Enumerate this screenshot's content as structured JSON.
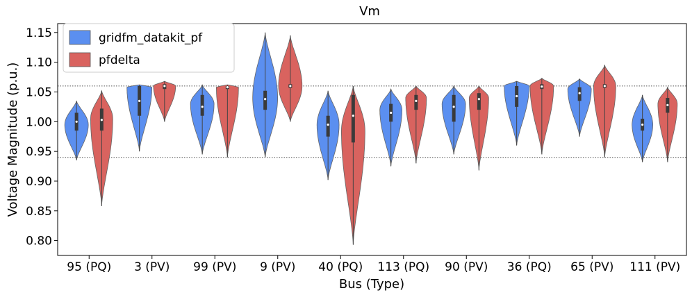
{
  "chart_data": {
    "type": "violin",
    "title": "Vm",
    "xlabel": "Bus (Type)",
    "ylabel": "Voltage Magnitude (p.u.)",
    "ylim": [
      0.775,
      1.165
    ],
    "yticks": [
      0.8,
      0.85,
      0.9,
      0.95,
      1.0,
      1.05,
      1.1,
      1.15
    ],
    "ytick_labels": [
      "0.80",
      "0.85",
      "0.90",
      "0.95",
      "1.00",
      "1.05",
      "1.10",
      "1.15"
    ],
    "categories": [
      "95 (PQ)",
      "3 (PV)",
      "99 (PV)",
      "9 (PV)",
      "40 (PQ)",
      "113 (PQ)",
      "90 (PV)",
      "36 (PQ)",
      "65 (PV)",
      "111 (PV)"
    ],
    "reference_lines": [
      0.94,
      1.06
    ],
    "legend_position": "top-left",
    "series": [
      {
        "name": "gridfm_datakit_pf",
        "color": "#5b8ff0",
        "violins": [
          {
            "min": 0.935,
            "max": 1.035,
            "q1": 0.985,
            "median": 1.0,
            "q3": 1.015,
            "peak": 0.995,
            "width": 0.85
          },
          {
            "min": 0.95,
            "max": 1.062,
            "q1": 1.01,
            "median": 1.035,
            "q3": 1.06,
            "peak": 1.058,
            "width": 0.9
          },
          {
            "min": 0.945,
            "max": 1.062,
            "q1": 1.01,
            "median": 1.025,
            "q3": 1.045,
            "peak": 1.03,
            "width": 0.85
          },
          {
            "min": 0.94,
            "max": 1.15,
            "q1": 1.02,
            "median": 1.038,
            "q3": 1.052,
            "peak": 1.04,
            "width": 0.9
          },
          {
            "min": 0.902,
            "max": 1.052,
            "q1": 0.975,
            "median": 0.995,
            "q3": 1.01,
            "peak": 0.995,
            "width": 0.8
          },
          {
            "min": 0.925,
            "max": 1.055,
            "q1": 1.0,
            "median": 1.015,
            "q3": 1.03,
            "peak": 1.02,
            "width": 0.8
          },
          {
            "min": 0.945,
            "max": 1.06,
            "q1": 1.0,
            "median": 1.025,
            "q3": 1.045,
            "peak": 1.03,
            "width": 0.85
          },
          {
            "min": 0.96,
            "max": 1.068,
            "q1": 1.025,
            "median": 1.043,
            "q3": 1.06,
            "peak": 1.06,
            "width": 0.9
          },
          {
            "min": 0.975,
            "max": 1.072,
            "q1": 1.035,
            "median": 1.048,
            "q3": 1.058,
            "peak": 1.055,
            "width": 0.85
          },
          {
            "min": 0.932,
            "max": 1.045,
            "q1": 0.985,
            "median": 0.995,
            "q3": 1.005,
            "peak": 0.995,
            "width": 0.75
          }
        ]
      },
      {
        "name": "pfdelta",
        "color": "#d9635f",
        "violins": [
          {
            "min": 0.858,
            "max": 1.052,
            "q1": 0.985,
            "median": 1.003,
            "q3": 1.022,
            "peak": 1.005,
            "width": 0.8
          },
          {
            "min": 1.0,
            "max": 1.068,
            "q1": 1.055,
            "median": 1.06,
            "q3": 1.063,
            "peak": 1.06,
            "width": 0.8
          },
          {
            "min": 0.94,
            "max": 1.062,
            "q1": 1.055,
            "median": 1.058,
            "q3": 1.06,
            "peak": 1.058,
            "width": 0.8
          },
          {
            "min": 1.0,
            "max": 1.145,
            "q1": 1.057,
            "median": 1.06,
            "q3": 1.063,
            "peak": 1.06,
            "width": 0.85
          },
          {
            "min": 0.793,
            "max": 1.06,
            "q1": 0.965,
            "median": 1.01,
            "q3": 1.045,
            "peak": 0.985,
            "width": 0.85
          },
          {
            "min": 0.93,
            "max": 1.06,
            "q1": 1.02,
            "median": 1.035,
            "q3": 1.045,
            "peak": 1.04,
            "width": 0.75
          },
          {
            "min": 0.918,
            "max": 1.06,
            "q1": 1.02,
            "median": 1.038,
            "q3": 1.048,
            "peak": 1.04,
            "width": 0.7
          },
          {
            "min": 0.945,
            "max": 1.073,
            "q1": 1.055,
            "median": 1.059,
            "q3": 1.063,
            "peak": 1.06,
            "width": 0.85
          },
          {
            "min": 0.94,
            "max": 1.095,
            "q1": 1.057,
            "median": 1.06,
            "q3": 1.063,
            "peak": 1.06,
            "width": 0.8
          },
          {
            "min": 0.932,
            "max": 1.058,
            "q1": 1.015,
            "median": 1.028,
            "q3": 1.04,
            "peak": 1.03,
            "width": 0.7
          }
        ]
      }
    ]
  }
}
